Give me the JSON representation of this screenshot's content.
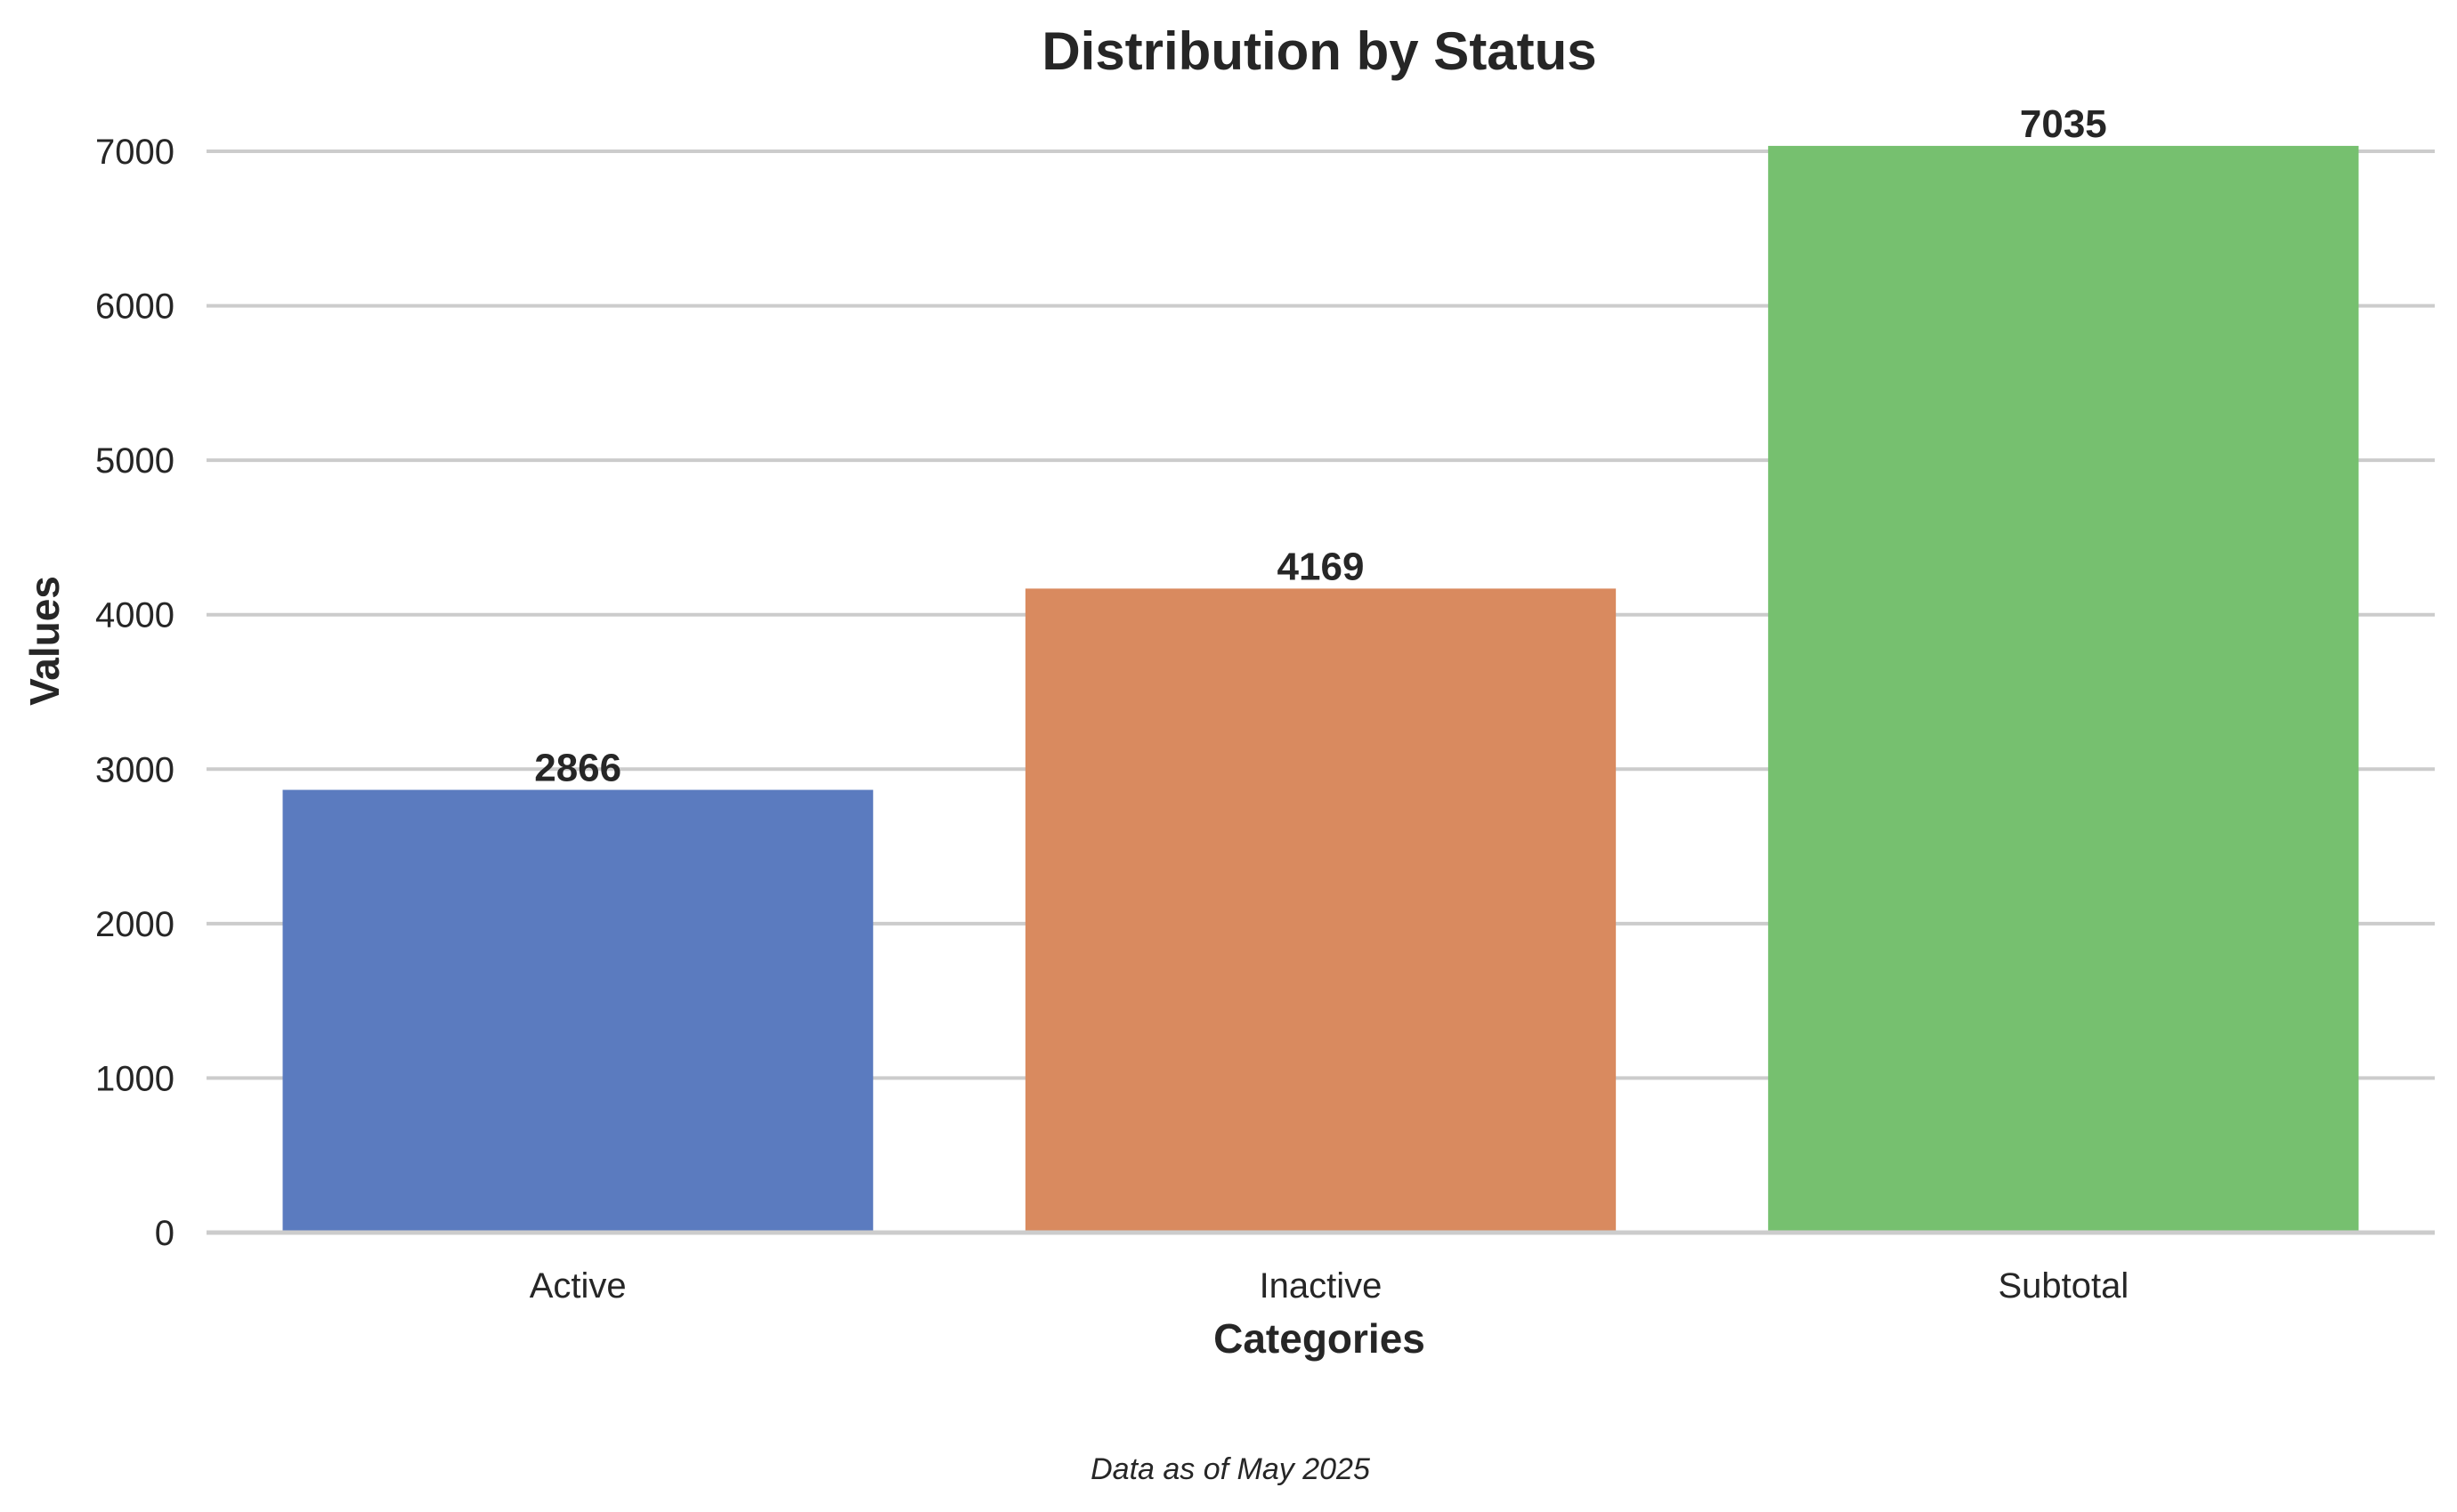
{
  "chart_data": {
    "type": "bar",
    "title": "Distribution by Status",
    "xlabel": "Categories",
    "ylabel": "Values",
    "categories": [
      "Active",
      "Inactive",
      "Subtotal"
    ],
    "values": [
      2866,
      4169,
      7035
    ],
    "colors": [
      "#5b7bbf",
      "#d98a5f",
      "#76c06f"
    ],
    "ylim": [
      0,
      7000
    ],
    "yticks": [
      0,
      1000,
      2000,
      3000,
      4000,
      5000,
      6000,
      7000
    ],
    "grid": "horizontal",
    "legend": "none",
    "footnote": "Data as of May 2025"
  }
}
